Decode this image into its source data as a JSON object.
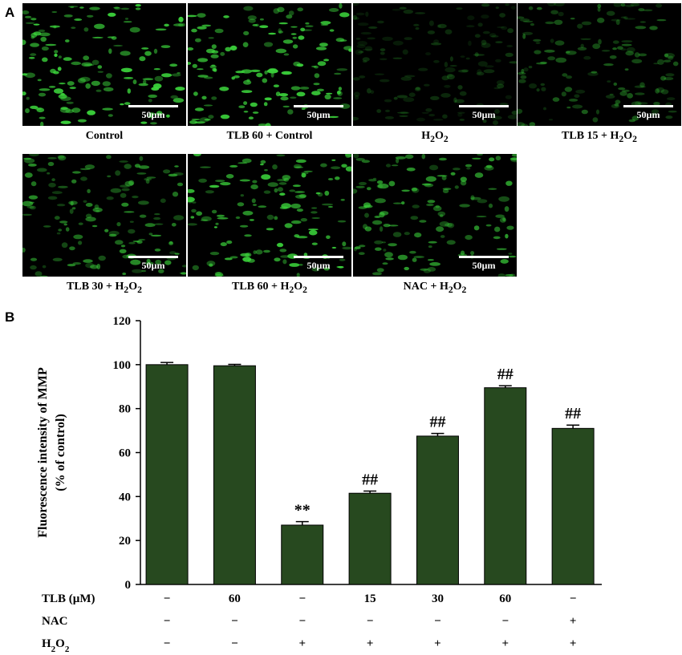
{
  "panel_a": {
    "letter": "A",
    "scale_label": "50µm",
    "images": [
      {
        "caption": "Control",
        "brightness": 1.0
      },
      {
        "caption": "TLB 60 + Control",
        "brightness": 1.0
      },
      {
        "caption": "H2O2",
        "brightness": 0.25
      },
      {
        "caption": "TLB 15 + H2O2",
        "brightness": 0.45
      },
      {
        "caption": "TLB 30 + H2O2",
        "brightness": 0.7
      },
      {
        "caption": "TLB 60 + H2O2",
        "brightness": 0.95
      },
      {
        "caption": "NAC + H2O2",
        "brightness": 0.75
      }
    ],
    "fluorescence_color": "#3cd63c"
  },
  "chart_data": {
    "type": "bar",
    "letter": "B",
    "ylabel_line1": "Fluorescence intensity of MMP",
    "ylabel_line2": "(% of control)",
    "ylim": [
      0,
      120
    ],
    "yticks": [
      "0",
      "20",
      "40",
      "60",
      "80",
      "100",
      "120"
    ],
    "values": [
      100,
      99.5,
      27,
      41.5,
      67.5,
      89.5,
      71
    ],
    "errors": [
      1.0,
      0.6,
      1.6,
      1.0,
      1.2,
      0.9,
      1.5
    ],
    "annotations": [
      "",
      "",
      "**",
      "##",
      "##",
      "##",
      "##"
    ],
    "bar_color": "#27491f",
    "conditions": [
      {
        "label": "TLB (µM)",
        "values": [
          "−",
          "60",
          "−",
          "15",
          "30",
          "60",
          "−"
        ]
      },
      {
        "label": "NAC",
        "values": [
          "−",
          "−",
          "−",
          "−",
          "−",
          "−",
          "+"
        ]
      },
      {
        "label": "H2O2",
        "values": [
          "−",
          "−",
          "+",
          "+",
          "+",
          "+",
          "+"
        ]
      }
    ]
  }
}
